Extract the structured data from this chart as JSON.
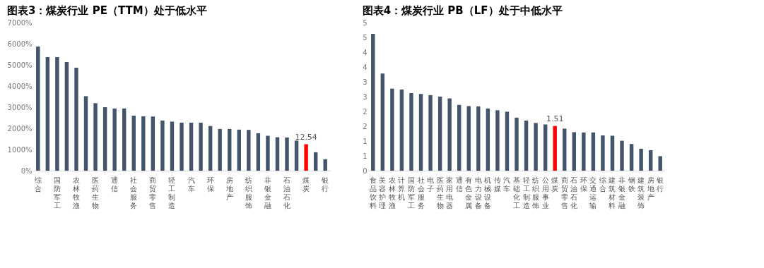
{
  "chart_data": [
    {
      "type": "bar",
      "title": "图表3：煤炭行业 PE（TTM）处于低水平",
      "categories": [
        "综合",
        null,
        "国防军工",
        null,
        "农林牧渔",
        null,
        "医药生物",
        null,
        "通信",
        null,
        "社会服务",
        null,
        "商贸零售",
        null,
        "轻工制造",
        null,
        "汽车",
        null,
        "环保",
        null,
        "房地产",
        null,
        "纺织服饰",
        null,
        "非银金融",
        null,
        "石油石化",
        null,
        "煤炭",
        null,
        "银行"
      ],
      "values": [
        5870,
        5370,
        5370,
        5130,
        4870,
        3520,
        3190,
        3000,
        2940,
        2940,
        2600,
        2570,
        2560,
        2370,
        2320,
        2270,
        2270,
        2270,
        2110,
        1970,
        1970,
        1940,
        1930,
        1770,
        1650,
        1580,
        1570,
        1420,
        1250,
        870,
        540
      ],
      "colors": [
        "#44546a",
        "#44546a",
        "#44546a",
        "#44546a",
        "#44546a",
        "#44546a",
        "#44546a",
        "#44546a",
        "#44546a",
        "#44546a",
        "#44546a",
        "#44546a",
        "#44546a",
        "#44546a",
        "#44546a",
        "#44546a",
        "#44546a",
        "#44546a",
        "#44546a",
        "#44546a",
        "#44546a",
        "#44546a",
        "#44546a",
        "#44546a",
        "#44546a",
        "#44546a",
        "#44546a",
        "#44546a",
        "#ff0000",
        "#44546a",
        "#44546a"
      ],
      "annotations": [
        {
          "text": "12.54",
          "x": "煤炭",
          "y": 1250
        }
      ],
      "ylim": [
        0,
        7000
      ],
      "yticks": [
        {
          "value": 0,
          "label": "0%"
        },
        {
          "value": 1000,
          "label": "1000%"
        },
        {
          "value": 2000,
          "label": "2000%"
        },
        {
          "value": 3000,
          "label": "3000%"
        },
        {
          "value": 4000,
          "label": "4000%"
        },
        {
          "value": 5000,
          "label": "5000%"
        },
        {
          "value": 6000,
          "label": "6000%"
        },
        {
          "value": 7000,
          "label": "7000%"
        }
      ]
    },
    {
      "type": "bar",
      "title": "图表4：煤炭行业 PB（LF）处于中低水平",
      "categories": [
        "食品饮料",
        "美容护理",
        "农林牧渔",
        "计算机",
        "国防军工",
        "社会服务",
        "电子",
        "医药生物",
        "家用电器",
        "通信",
        "有色金属",
        "电力设备",
        "机械设备",
        "传媒",
        "汽车",
        "基础化工",
        "轻工制造",
        "纺织服饰",
        "公用事业",
        "煤炭",
        "商贸零售",
        "石油石化",
        "环保",
        "交通运输",
        "综合",
        "建筑材料",
        "非银金融",
        "钢铁",
        "建筑装饰",
        "房地产",
        "银行"
      ],
      "values": [
        4.62,
        3.28,
        2.77,
        2.74,
        2.62,
        2.59,
        2.55,
        2.5,
        2.44,
        2.22,
        2.18,
        2.17,
        2.1,
        2.04,
        1.99,
        1.79,
        1.69,
        1.61,
        1.56,
        1.51,
        1.42,
        1.3,
        1.29,
        1.29,
        1.19,
        1.18,
        1.01,
        0.9,
        0.74,
        0.69,
        0.49
      ],
      "colors": [
        "#44546a",
        "#44546a",
        "#44546a",
        "#44546a",
        "#44546a",
        "#44546a",
        "#44546a",
        "#44546a",
        "#44546a",
        "#44546a",
        "#44546a",
        "#44546a",
        "#44546a",
        "#44546a",
        "#44546a",
        "#44546a",
        "#44546a",
        "#44546a",
        "#44546a",
        "#ff0000",
        "#44546a",
        "#44546a",
        "#44546a",
        "#44546a",
        "#44546a",
        "#44546a",
        "#44546a",
        "#44546a",
        "#44546a",
        "#44546a",
        "#44546a"
      ],
      "value_labels": [
        null,
        null,
        null,
        null,
        null,
        null,
        null,
        null,
        null,
        null,
        null,
        null,
        null,
        null,
        null,
        null,
        null,
        null,
        null,
        "1.51",
        null,
        null,
        null,
        null,
        null,
        null,
        null,
        null,
        null,
        null,
        null
      ],
      "ylim": [
        0,
        5
      ],
      "yticks": [
        0,
        {
          "value": 0.5,
          "label": "1"
        },
        1,
        {
          "value": 1.5,
          "label": "2"
        },
        2,
        {
          "value": 2.5,
          "label": "3"
        },
        3,
        {
          "value": 3.5,
          "label": "4"
        },
        4,
        {
          "value": 4.5,
          "label": "5"
        },
        5
      ]
    }
  ]
}
